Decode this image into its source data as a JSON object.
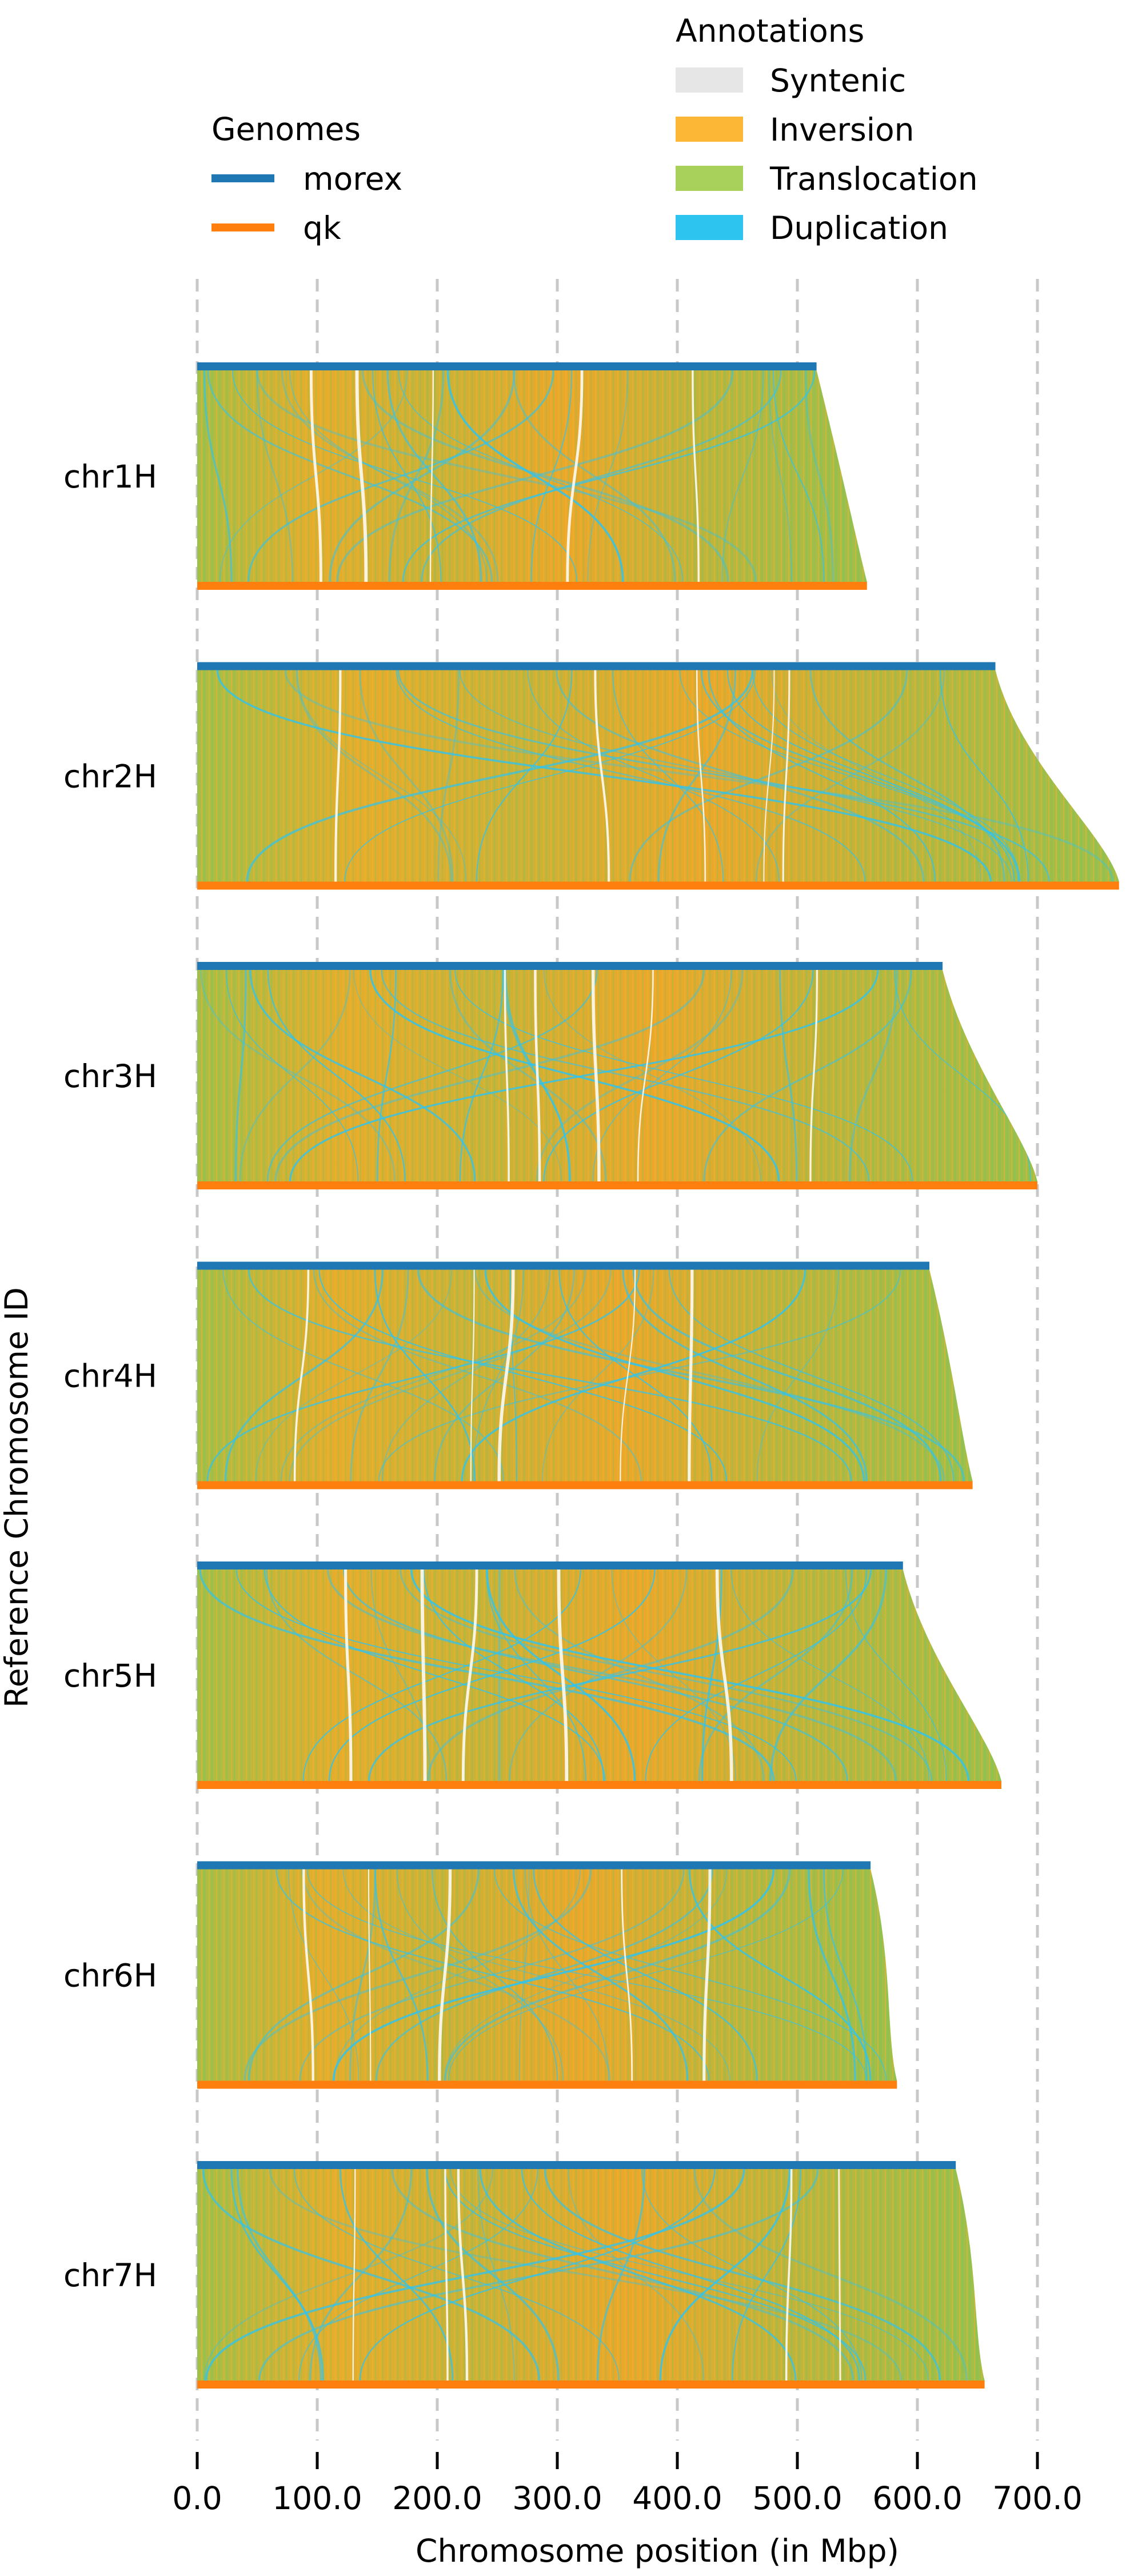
{
  "chart_data": {
    "type": "synteny-ribbon",
    "title": "",
    "xlabel": "Chromosome position (in Mbp)",
    "ylabel": "Reference Chromosome ID",
    "xlim": [
      0,
      760
    ],
    "xticks": [
      0,
      100,
      200,
      300,
      400,
      500,
      600,
      700
    ],
    "xtick_labels": [
      "0.0",
      "100.0",
      "200.0",
      "300.0",
      "400.0",
      "500.0",
      "600.0",
      "700.0"
    ],
    "grid": "vertical dashed",
    "legends": {
      "genomes": {
        "title": "Genomes",
        "items": [
          {
            "label": "morex",
            "color": "#1f77b4"
          },
          {
            "label": "qk",
            "color": "#ff7f0e"
          }
        ]
      },
      "annotations": {
        "title": "Annotations",
        "items": [
          {
            "label": "Syntenic",
            "color": "#e6e6e6"
          },
          {
            "label": "Inversion",
            "color": "#fdb736"
          },
          {
            "label": "Translocation",
            "color": "#a8d15c"
          },
          {
            "label": "Duplication",
            "color": "#2ec4f0"
          }
        ]
      }
    },
    "chromosomes": [
      {
        "id": "chr1H",
        "morex_length": 516,
        "qk_length": 558
      },
      {
        "id": "chr2H",
        "morex_length": 665,
        "qk_length": 768
      },
      {
        "id": "chr3H",
        "morex_length": 621,
        "qk_length": 700
      },
      {
        "id": "chr4H",
        "morex_length": 610,
        "qk_length": 646
      },
      {
        "id": "chr5H",
        "morex_length": 588,
        "qk_length": 670
      },
      {
        "id": "chr6H",
        "morex_length": 561,
        "qk_length": 583
      },
      {
        "id": "chr7H",
        "morex_length": 632,
        "qk_length": 656
      }
    ]
  }
}
